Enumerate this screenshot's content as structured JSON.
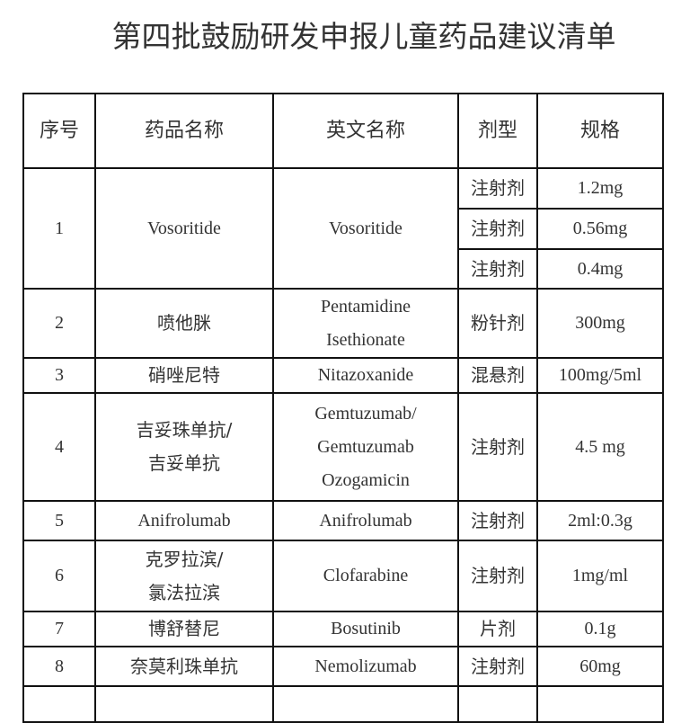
{
  "title": "第四批鼓励研发申报儿童药品建议清单",
  "headers": [
    "序号",
    "药品名称",
    "英文名称",
    "剂型",
    "规格"
  ],
  "rows": [
    {
      "no": "1",
      "name": "Vosoritide",
      "en": "Vosoritide",
      "forms": [
        {
          "form": "注射剂",
          "spec": "1.2mg"
        },
        {
          "form": "注射剂",
          "spec": "0.56mg"
        },
        {
          "form": "注射剂",
          "spec": "0.4mg"
        }
      ]
    },
    {
      "no": "2",
      "name": "喷他脒",
      "en": [
        "Pentamidine",
        "Isethionate"
      ],
      "form": "粉针剂",
      "spec": "300mg"
    },
    {
      "no": "3",
      "name": "硝唑尼特",
      "en": "Nitazoxanide",
      "form": "混悬剂",
      "spec": "100mg/5ml"
    },
    {
      "no": "4",
      "name": [
        "吉妥珠单抗/",
        "吉妥单抗"
      ],
      "en": [
        "Gemtuzumab/",
        "Gemtuzumab",
        "Ozogamicin"
      ],
      "form": "注射剂",
      "spec": "4.5 mg"
    },
    {
      "no": "5",
      "name": "Anifrolumab",
      "en": "Anifrolumab",
      "form": "注射剂",
      "spec": "2ml:0.3g"
    },
    {
      "no": "6",
      "name": [
        "克罗拉滨/",
        "氯法拉滨"
      ],
      "en": "Clofarabine",
      "form": "注射剂",
      "spec": "1mg/ml"
    },
    {
      "no": "7",
      "name": "博舒替尼",
      "en": "Bosutinib",
      "form": "片剂",
      "spec": "0.1g"
    },
    {
      "no": "8",
      "name": "奈莫利珠单抗",
      "en": "Nemolizumab",
      "form": "注射剂",
      "spec": "60mg"
    }
  ]
}
